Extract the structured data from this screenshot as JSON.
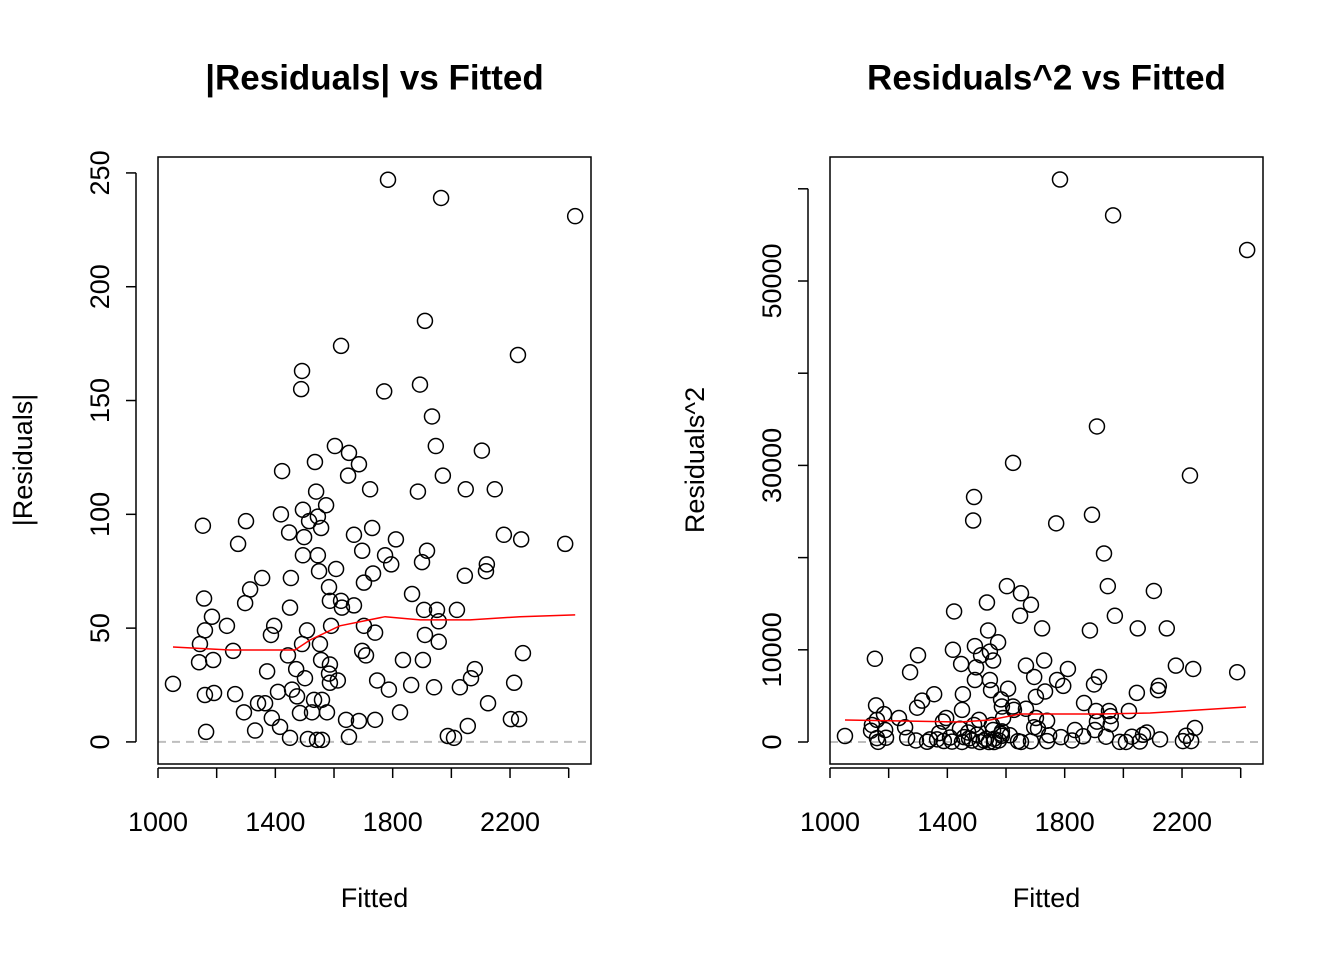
{
  "chart_data": [
    {
      "type": "scatter",
      "title": "|Residuals| vs Fitted",
      "xlabel": "Fitted",
      "ylabel": "|Residuals|",
      "xlim": [
        1000,
        2476
      ],
      "ylim": [
        -9.7,
        257
      ],
      "xticks": [
        1000,
        {
          "value": 1200,
          "label": null
        },
        1400,
        {
          "value": 1600,
          "label": null
        },
        1800,
        {
          "value": 2000,
          "label": null
        },
        2200,
        {
          "value": 2400,
          "label": null
        }
      ],
      "yticks": [
        0,
        50,
        100,
        150,
        200,
        250
      ],
      "hline": 0,
      "hline_color": "#bebebe",
      "color": "#000000",
      "smooth": {
        "color": "#ff0000",
        "x": [
          1051,
          1245,
          1467,
          1518,
          1620,
          1774,
          1893,
          2064,
          2234,
          2422
        ],
        "y": [
          41.7,
          40.4,
          40.4,
          44.8,
          51,
          55,
          53.6,
          53.6,
          55,
          55.8
        ]
      },
      "x": [
        1051,
        1153,
        1157,
        1160,
        1143,
        1140,
        1184,
        1188,
        1191,
        1160,
        1164,
        1235,
        1256,
        1263,
        1273,
        1300,
        1297,
        1314,
        1293,
        1355,
        1341,
        1365,
        1331,
        1372,
        1385,
        1396,
        1409,
        1388,
        1416,
        1423,
        1419,
        1447,
        1450,
        1453,
        1443,
        1457,
        1450,
        1474,
        1484,
        1491,
        1488,
        1494,
        1498,
        1494,
        1491,
        1471,
        1501,
        1508,
        1515,
        1535,
        1539,
        1545,
        1545,
        1549,
        1556,
        1552,
        1556,
        1559,
        1532,
        1525,
        1511,
        1542,
        1559,
        1573,
        1583,
        1586,
        1590,
        1586,
        1583,
        1586,
        1576,
        1603,
        1624,
        1607,
        1624,
        1627,
        1613,
        1648,
        1651,
        1641,
        1651,
        1668,
        1668,
        1685,
        1696,
        1702,
        1696,
        1709,
        1702,
        1685,
        1723,
        1730,
        1733,
        1740,
        1747,
        1740,
        1771,
        1774,
        1784,
        1787,
        1795,
        1811,
        1825,
        1835,
        1866,
        1863,
        1886,
        1893,
        1900,
        1910,
        1903,
        1910,
        1917,
        1907,
        1934,
        1947,
        1951,
        1957,
        1941,
        1965,
        1971,
        1988,
        2009,
        2019,
        2029,
        2046,
        2049,
        2056,
        2080,
        2104,
        2121,
        2125,
        2148,
        2179,
        2203,
        2214,
        2227,
        2231,
        2238,
        2244,
        2388,
        2422,
        2118,
        2067,
        1957
      ],
      "values": [
        25.5,
        95,
        63,
        49,
        43,
        35,
        55,
        36,
        21.5,
        20.6,
        4.4,
        51,
        40,
        21,
        87,
        97,
        61,
        67,
        13,
        72,
        17,
        17,
        5,
        31,
        47,
        51,
        22,
        10.5,
        6.6,
        119,
        100,
        92,
        59,
        72,
        38,
        23,
        1.8,
        20,
        12.7,
        163,
        155,
        102,
        90,
        82,
        43,
        32,
        28,
        49,
        97,
        123,
        110,
        99,
        82,
        75,
        94,
        43,
        36,
        18.5,
        18.5,
        13,
        1.3,
        0.9,
        0.9,
        104,
        68,
        62,
        51,
        34,
        30,
        26,
        13,
        130,
        174,
        76,
        62,
        59,
        27,
        117,
        127,
        9.7,
        2.2,
        91,
        60,
        122,
        84,
        70,
        40,
        38,
        51,
        9.2,
        111,
        94,
        74,
        48,
        27,
        9.7,
        154,
        82,
        247,
        23,
        78,
        89,
        13,
        36,
        65,
        25,
        110,
        157,
        79,
        185,
        36,
        47,
        84,
        58,
        143,
        130,
        58,
        44,
        24,
        239,
        117,
        2.6,
        1.8,
        58,
        24,
        73,
        111,
        7,
        32,
        128,
        78,
        17,
        111,
        91,
        10,
        26,
        170,
        10,
        89,
        39,
        87,
        231,
        75,
        28,
        53
      ]
    },
    {
      "type": "scatter",
      "title": "Residuals^2 vs Fitted",
      "xlabel": "Fitted",
      "ylabel": "Residuals^2",
      "xlim": [
        1000,
        2476
      ],
      "ylim": [
        -2386,
        63450
      ],
      "xticks": [
        1000,
        {
          "value": 1200,
          "label": null
        },
        1400,
        {
          "value": 1600,
          "label": null
        },
        1800,
        {
          "value": 2000,
          "label": null
        },
        2200,
        {
          "value": 2400,
          "label": null
        }
      ],
      "yticks": [
        0,
        10000,
        {
          "value": 20000,
          "label": null
        },
        30000,
        {
          "value": 40000,
          "label": null
        },
        50000,
        {
          "value": 60000,
          "label": null
        }
      ],
      "hline": 0,
      "hline_color": "#bebebe",
      "color": "#000000",
      "smooth": {
        "color": "#ff0000",
        "x": [
          1051,
          1443,
          1545,
          1648,
          1920,
          2091,
          2418
        ],
        "y": [
          2386,
          2170,
          2386,
          3037,
          3037,
          3145,
          3796
        ]
      },
      "x": [
        1051,
        1153,
        1157,
        1160,
        1143,
        1140,
        1184,
        1188,
        1191,
        1160,
        1164,
        1235,
        1256,
        1263,
        1273,
        1300,
        1297,
        1314,
        1293,
        1355,
        1341,
        1365,
        1331,
        1372,
        1385,
        1396,
        1409,
        1388,
        1416,
        1423,
        1419,
        1447,
        1450,
        1453,
        1443,
        1457,
        1450,
        1474,
        1484,
        1491,
        1488,
        1494,
        1498,
        1494,
        1491,
        1471,
        1501,
        1508,
        1515,
        1535,
        1539,
        1545,
        1545,
        1549,
        1556,
        1552,
        1556,
        1559,
        1532,
        1525,
        1511,
        1542,
        1559,
        1573,
        1583,
        1586,
        1590,
        1586,
        1583,
        1586,
        1576,
        1603,
        1624,
        1607,
        1624,
        1627,
        1613,
        1648,
        1651,
        1641,
        1651,
        1668,
        1668,
        1685,
        1696,
        1702,
        1696,
        1709,
        1702,
        1685,
        1723,
        1730,
        1733,
        1740,
        1747,
        1740,
        1771,
        1774,
        1784,
        1787,
        1795,
        1811,
        1825,
        1835,
        1866,
        1863,
        1886,
        1893,
        1900,
        1910,
        1903,
        1910,
        1917,
        1907,
        1934,
        1947,
        1951,
        1957,
        1941,
        1965,
        1971,
        1988,
        2009,
        2019,
        2029,
        2046,
        2049,
        2056,
        2080,
        2104,
        2121,
        2125,
        2148,
        2179,
        2203,
        2214,
        2227,
        2231,
        2238,
        2244,
        2388,
        2422,
        2118,
        2067,
        1957
      ],
      "values": [
        650,
        9025,
        3969,
        2401,
        1849,
        1225,
        3025,
        1296,
        462,
        424,
        19,
        2601,
        1600,
        441,
        7569,
        9409,
        3721,
        4489,
        169,
        5184,
        289,
        289,
        25,
        961,
        2209,
        2601,
        484,
        110,
        44,
        14161,
        10000,
        8464,
        3481,
        5184,
        1444,
        529,
        3,
        400,
        161,
        26569,
        24025,
        10404,
        8100,
        6724,
        1849,
        1024,
        784,
        2401,
        9409,
        15129,
        12100,
        9801,
        6724,
        5625,
        8836,
        1849,
        1296,
        342,
        342,
        169,
        2,
        1,
        1,
        10816,
        4624,
        3844,
        2601,
        1156,
        900,
        676,
        169,
        16900,
        30276,
        5776,
        3844,
        3481,
        729,
        13689,
        16129,
        94,
        5,
        8281,
        3600,
        14884,
        7056,
        4900,
        1600,
        1444,
        2601,
        85,
        12321,
        8836,
        5476,
        2304,
        729,
        94,
        23716,
        6724,
        61009,
        529,
        6084,
        7921,
        169,
        1296,
        4225,
        625,
        12100,
        24649,
        6241,
        34225,
        1296,
        2209,
        7056,
        3364,
        20449,
        16900,
        3364,
        1936,
        576,
        57121,
        13689,
        7,
        3,
        3364,
        576,
        5329,
        12321,
        49,
        1024,
        16384,
        6084,
        289,
        12321,
        8281,
        100,
        676,
        28900,
        100,
        7921,
        1521,
        7569,
        53361,
        5625,
        784,
        2809
      ]
    }
  ]
}
